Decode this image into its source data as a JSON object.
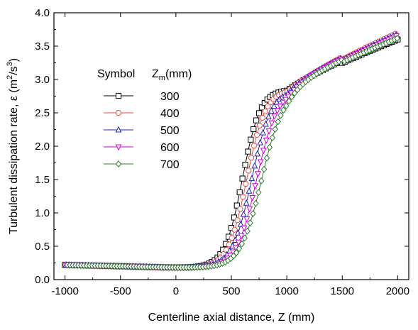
{
  "chart_data": {
    "type": "line",
    "xlabel": "Centerline axial distance, Z (mm)",
    "ylabel_main": "Turbulent dissipation rate,  ε (m",
    "ylabel_sup1": "2",
    "ylabel_mid": "/s",
    "ylabel_sup2": "3",
    "ylabel_end": ")",
    "xlim": [
      -1100,
      2100
    ],
    "ylim": [
      0.0,
      4.0
    ],
    "xticks": [
      -1000,
      -500,
      0,
      500,
      1000,
      1500,
      2000
    ],
    "yticks": [
      0.0,
      0.5,
      1.0,
      1.5,
      2.0,
      2.5,
      3.0,
      3.5,
      4.0
    ],
    "grid": false,
    "legend": {
      "placement": "upper-left",
      "header_symbol": "Symbol",
      "header_z": "Z",
      "header_sub": "m",
      "header_unit": "(mm)"
    },
    "series": [
      {
        "name": "300",
        "color": "#000000",
        "marker": "square"
      },
      {
        "name": "400",
        "color": "#e8483a",
        "marker": "circle"
      },
      {
        "name": "500",
        "color": "#2020c0",
        "marker": "triangle-up"
      },
      {
        "name": "600",
        "color": "#d000d0",
        "marker": "triangle-down"
      },
      {
        "name": "700",
        "color": "#2e7d32",
        "marker": "diamond"
      }
    ],
    "curve_points": [
      {
        "x": -1000,
        "y": 0.22
      },
      {
        "x": -800,
        "y": 0.2
      },
      {
        "x": -500,
        "y": 0.19
      },
      {
        "x": -200,
        "y": 0.18
      },
      {
        "x": 0,
        "y": 0.18
      }
    ],
    "rise_model": {
      "series_offsets": [
        0,
        40,
        85,
        130,
        175
      ],
      "midpoint_base": 600,
      "width_base": 80,
      "width_step": 4,
      "low_level": 0.18,
      "plateau_at_1000": 2.85,
      "plateau_at_2000_by_series": [
        3.6,
        3.7,
        3.68,
        3.66,
        3.62
      ]
    }
  }
}
